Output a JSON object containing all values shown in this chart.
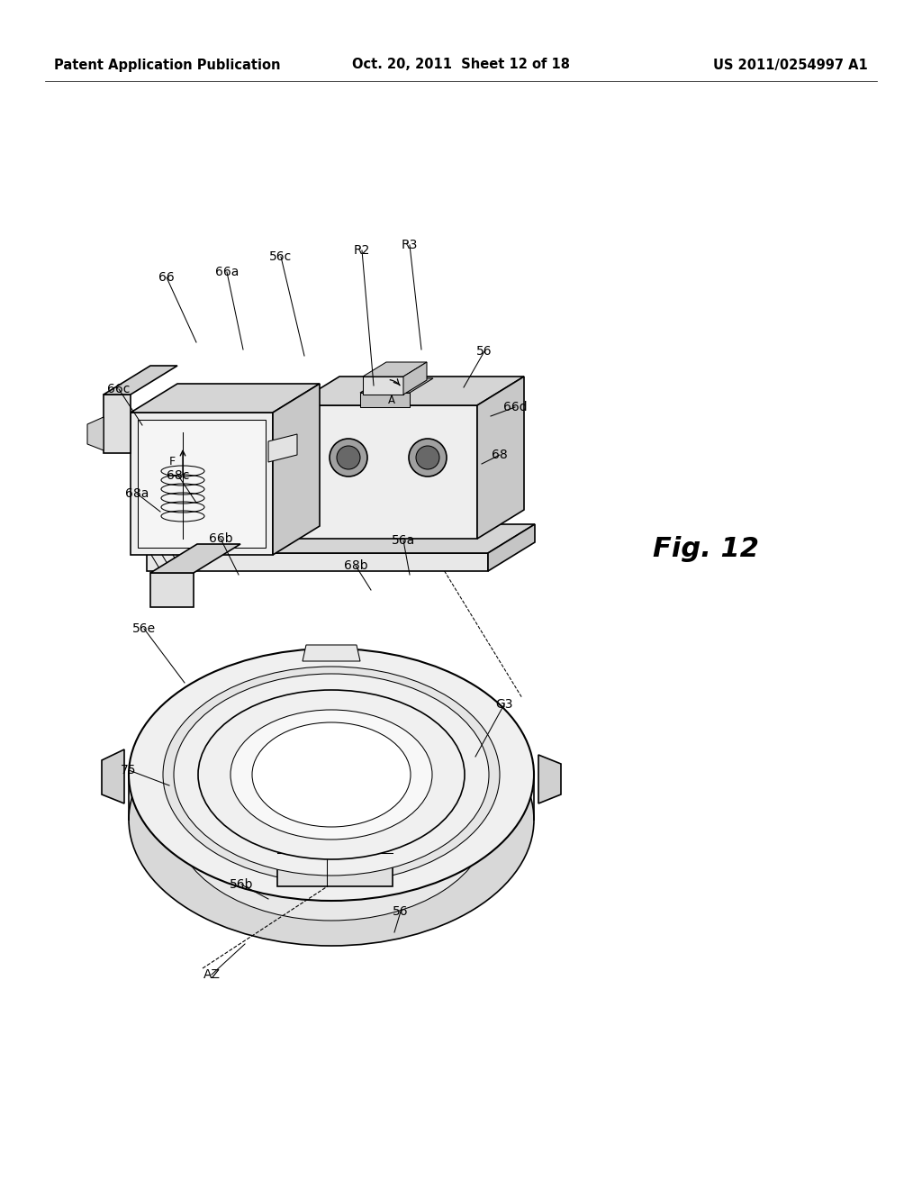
{
  "background_color": "#ffffff",
  "header_left": "Patent Application Publication",
  "header_center": "Oct. 20, 2011  Sheet 12 of 18",
  "header_right": "US 2011/0254997 A1",
  "fig_label": "Fig. 12",
  "line_color": "#000000",
  "lw": 1.2,
  "tlw": 0.75,
  "fs_label": 10,
  "fs_header": 10.5,
  "fs_fig": 22
}
